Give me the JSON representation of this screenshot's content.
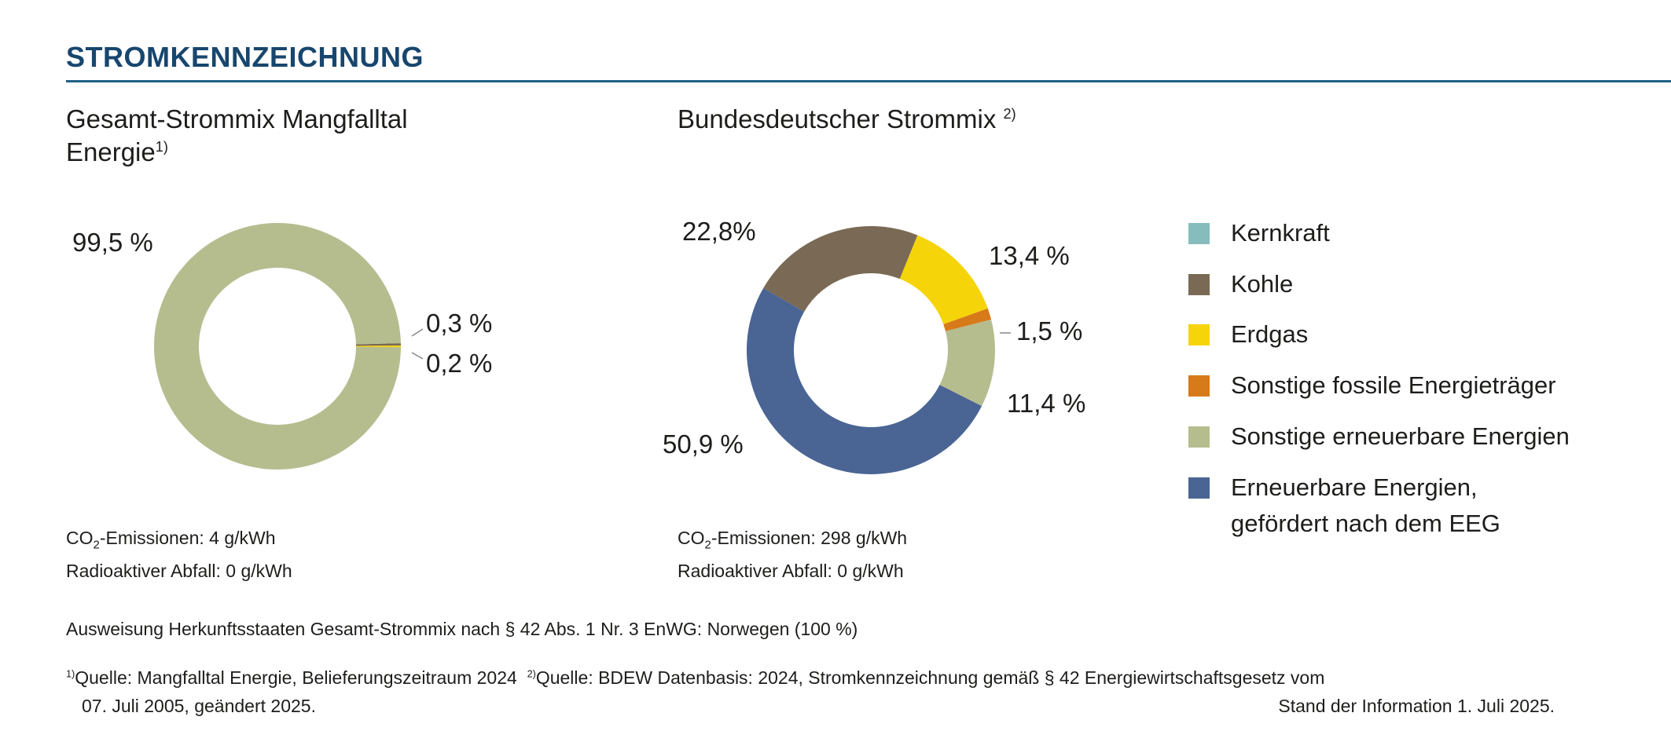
{
  "heading": "STROMKENNZEICHNUNG",
  "chart_data": [
    {
      "type": "pie",
      "donut": true,
      "title_line1": "Gesamt-Strommix Mangfalltal",
      "title_line2": "Energie",
      "title_footnote": "1)",
      "slices": [
        {
          "name": "Kohle",
          "value": 0.3,
          "label": "0,3 %"
        },
        {
          "name": "Erdgas",
          "value": 0.2,
          "label": "0,2 %"
        },
        {
          "name": "Sonstige erneuerbare Energien",
          "value": 99.5,
          "label": "99,5 %"
        }
      ],
      "co2_label": "CO",
      "co2_sub": "2",
      "co2_text": "-Emissionen: 4 g/kWh",
      "waste_text": "Radioaktiver Abfall: 0 g/kWh"
    },
    {
      "type": "pie",
      "donut": true,
      "title": "Bundesdeutscher Strommix",
      "title_footnote": "2)",
      "slices": [
        {
          "name": "Kohle",
          "value": 22.8,
          "label": "22,8%"
        },
        {
          "name": "Erdgas",
          "value": 13.4,
          "label": "13,4 %"
        },
        {
          "name": "Sonstige fossile Energieträger",
          "value": 1.5,
          "label": "1,5 %"
        },
        {
          "name": "Sonstige erneuerbare Energien",
          "value": 11.4,
          "label": "11,4 %"
        },
        {
          "name": "Erneuerbare Energien, gefördert nach dem EEG",
          "value": 50.9,
          "label": "50,9 %"
        }
      ],
      "co2_label": "CO",
      "co2_sub": "2",
      "co2_text": "-Emissionen: 298 g/kWh",
      "waste_text": "Radioaktiver Abfall: 0 g/kWh"
    }
  ],
  "legend": [
    {
      "name": "Kernkraft",
      "color": "#86bcbc"
    },
    {
      "name": "Kohle",
      "color": "#7a6a55"
    },
    {
      "name": "Erdgas",
      "color": "#f5d40a"
    },
    {
      "name": "Sonstige fossile Energieträger",
      "color": "#d77a1a"
    },
    {
      "name": "Sonstige erneuerbare Energien",
      "color": "#b5bd8f"
    },
    {
      "name": "Erneuerbare Energien,",
      "name2": "gefördert nach dem EEG",
      "color": "#4a6494"
    }
  ],
  "origin_note": "Ausweisung Herkunftsstaaten Gesamt-Strommix nach § 42 Abs. 1 Nr. 3 EnWG: Norwegen (100 %)",
  "footnotes": {
    "fn1_mark": "1)",
    "fn1": "Quelle: Mangfalltal Energie, Belieferungszeitraum 2024",
    "fn2_mark": "2)",
    "fn2": "Quelle: BDEW Datenbasis: 2024, Stromkennzeichnung gemäß § 42 Energiewirtschaftsgesetz vom",
    "line2_left": "07. Juli 2005, geändert 2025.",
    "line2_right": "Stand der Information 1. Juli 2025."
  }
}
